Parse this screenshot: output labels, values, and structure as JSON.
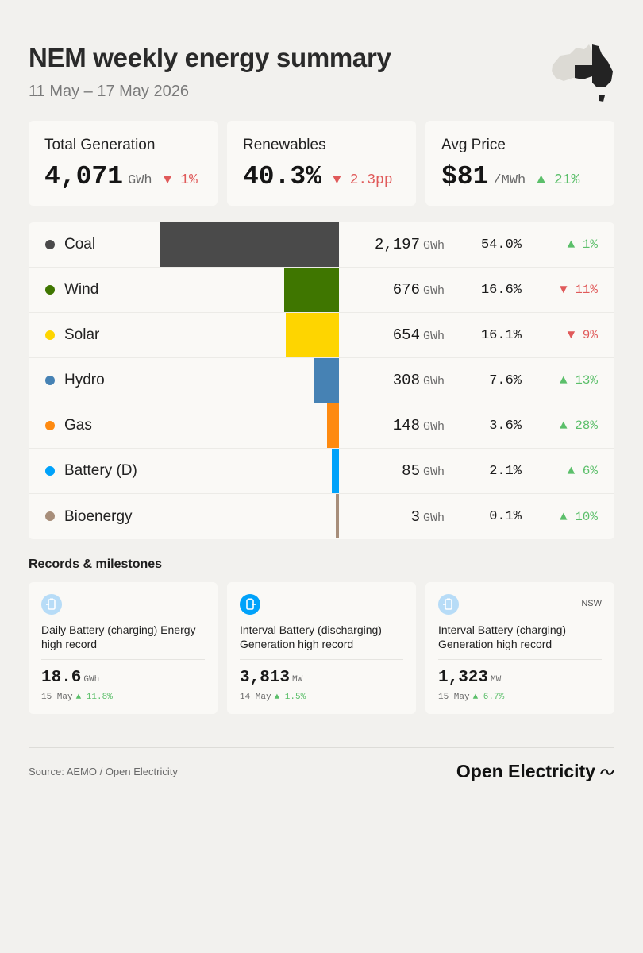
{
  "header": {
    "title": "NEM weekly energy summary",
    "subtitle": "11 May – 17 May 2026"
  },
  "kpis": [
    {
      "label": "Total Generation",
      "value": "4,071",
      "unit": "GWh",
      "change": "▼ 1%",
      "direction": "down"
    },
    {
      "label": "Renewables",
      "value": "40.3%",
      "unit": "",
      "change": "▼ 2.3pp",
      "direction": "down"
    },
    {
      "label": "Avg Price",
      "value": "$81",
      "unit": "/MWh",
      "change": "▲ 21%",
      "direction": "up"
    }
  ],
  "chart_data": {
    "type": "bar",
    "categories": [
      "Coal",
      "Wind",
      "Solar",
      "Hydro",
      "Gas",
      "Battery (D)",
      "Bioenergy"
    ],
    "values": [
      2197,
      676,
      654,
      308,
      148,
      85,
      3
    ],
    "unit": "GWh",
    "shares": [
      "54.0%",
      "16.6%",
      "16.1%",
      "7.6%",
      "3.6%",
      "2.1%",
      "0.1%"
    ],
    "changes": [
      "▲ 1%",
      "▼ 11%",
      "▼ 9%",
      "▲ 13%",
      "▲ 28%",
      "▲ 6%",
      "▲ 10%"
    ],
    "directions": [
      "up",
      "down",
      "down",
      "up",
      "up",
      "up",
      "up"
    ],
    "colors": [
      "#4a4a4a",
      "#3f7600",
      "#fed500",
      "#4682b4",
      "#fe8a10",
      "#00a2fa",
      "#a78e7a"
    ],
    "value_labels": [
      "2,197",
      "676",
      "654",
      "308",
      "148",
      "85",
      "3"
    ]
  },
  "records": {
    "title": "Records & milestones",
    "items": [
      {
        "description": "Daily Battery (charging) Energy high record",
        "value": "18.6",
        "unit": "GWh",
        "date": "15 May",
        "change": "▲ 11.8%",
        "region": "",
        "icon_color": "#b7dcf7",
        "icon": "battery-charging-icon"
      },
      {
        "description": "Interval Battery (discharging) Generation high record",
        "value": "3,813",
        "unit": "MW",
        "date": "14 May",
        "change": "▲ 1.5%",
        "region": "",
        "icon_color": "#00a2fa",
        "icon": "battery-discharging-icon"
      },
      {
        "description": "Interval Battery (charging) Generation high record",
        "value": "1,323",
        "unit": "MW",
        "date": "15 May",
        "change": "▲ 6.7%",
        "region": "NSW",
        "icon_color": "#b7dcf7",
        "icon": "battery-charging-icon"
      }
    ]
  },
  "footer": {
    "source": "Source: AEMO / Open Electricity",
    "brand": "Open Electricity"
  }
}
